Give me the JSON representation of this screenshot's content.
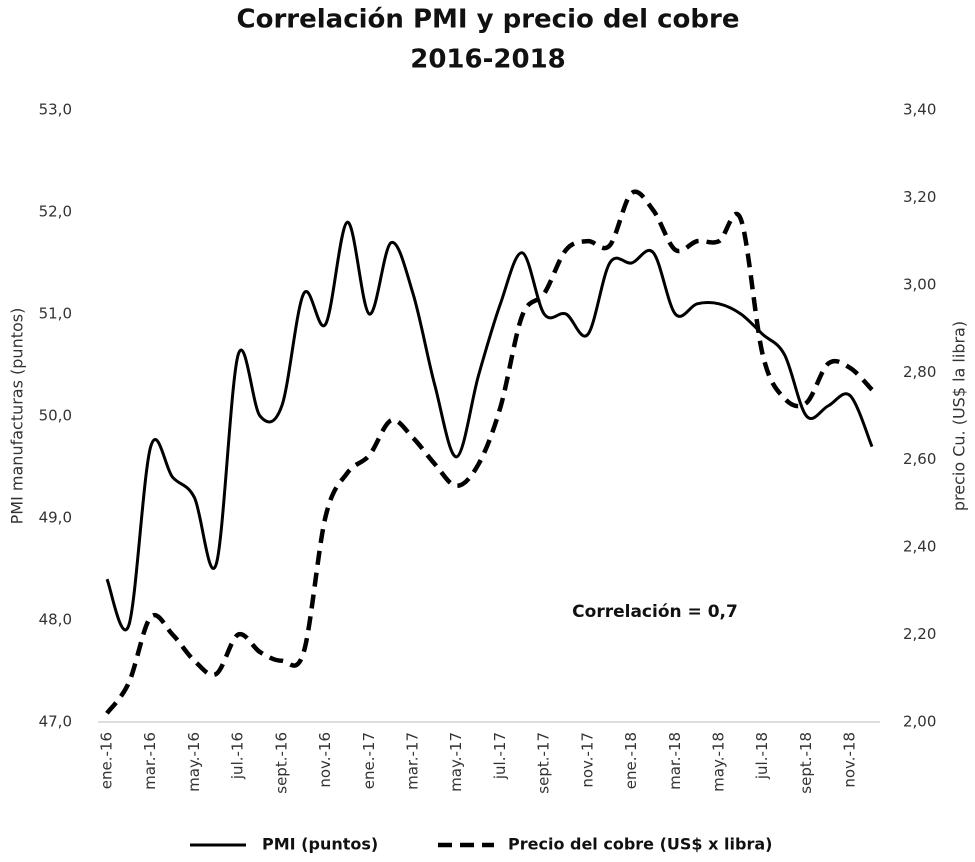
{
  "chart_data": {
    "type": "line",
    "title": [
      "Correlación PMI y precio del cobre",
      "2016-2018"
    ],
    "y_label": "PMI manufacturas (puntos)",
    "y2_label": "precio Cu. (US$ la libra)",
    "annotation": "Correlación = 0,7",
    "categories": [
      "ene.-16",
      null,
      "mar.-16",
      null,
      "may.-16",
      null,
      "jul.-16",
      null,
      "sept.-16",
      null,
      "nov.-16",
      null,
      "ene.-17",
      null,
      "mar.-17",
      null,
      "may.-17",
      null,
      "jul.-17",
      null,
      "sept.-17",
      null,
      "nov.-17",
      null,
      "ene.-18",
      null,
      "mar.-18",
      null,
      "may.-18",
      null,
      "jul.-18",
      null,
      "sept.-18",
      null,
      "nov.-18",
      null
    ],
    "series": [
      {
        "name": "PMI (puntos)",
        "color": "#000000",
        "linestyle": "solid",
        "values": [
          48.4,
          47.95,
          49.7,
          49.4,
          49.2,
          48.55,
          50.6,
          50.0,
          50.1,
          51.2,
          50.9,
          51.9,
          51.0,
          51.7,
          51.2,
          50.3,
          49.6,
          50.4,
          51.1,
          51.6,
          51.0,
          51.0,
          50.8,
          51.5,
          51.5,
          51.6,
          51.0,
          51.1,
          51.1,
          51.0,
          50.8,
          50.6,
          50.0,
          50.1,
          50.2,
          49.7
        ]
      },
      {
        "name": "Precio del cobre (US$ x libra)",
        "color": "#000000",
        "linestyle": "dashed",
        "axis": "y2",
        "values": [
          2.02,
          2.09,
          2.24,
          2.2,
          2.14,
          2.11,
          2.2,
          2.16,
          2.14,
          2.16,
          2.47,
          2.57,
          2.61,
          2.69,
          2.65,
          2.59,
          2.54,
          2.59,
          2.72,
          2.93,
          2.98,
          3.08,
          3.1,
          3.09,
          3.21,
          3.17,
          3.08,
          3.1,
          3.1,
          3.15,
          2.84,
          2.74,
          2.73,
          2.82,
          2.81,
          2.76
        ]
      }
    ],
    "ylim": [
      47,
      53
    ],
    "yticks": [
      {
        "value": 47,
        "label": "47,0"
      },
      {
        "value": 48,
        "label": "48,0"
      },
      {
        "value": 49,
        "label": "49,0"
      },
      {
        "value": 50,
        "label": "50,0"
      },
      {
        "value": 51,
        "label": "51,0"
      },
      {
        "value": 52,
        "label": "52,0"
      },
      {
        "value": 53,
        "label": "53,0"
      }
    ],
    "y2lim": [
      2.0,
      3.4
    ],
    "y2ticks": [
      {
        "value": 2.0,
        "label": "2,00"
      },
      {
        "value": 2.2,
        "label": "2,20"
      },
      {
        "value": 2.4,
        "label": "2,40"
      },
      {
        "value": 2.6,
        "label": "2,60"
      },
      {
        "value": 2.8,
        "label": "2,80"
      },
      {
        "value": 3.0,
        "label": "3,00"
      },
      {
        "value": 3.2,
        "label": "3,20"
      },
      {
        "value": 3.4,
        "label": "3,40"
      }
    ],
    "grid": false,
    "legend": "bottom"
  }
}
